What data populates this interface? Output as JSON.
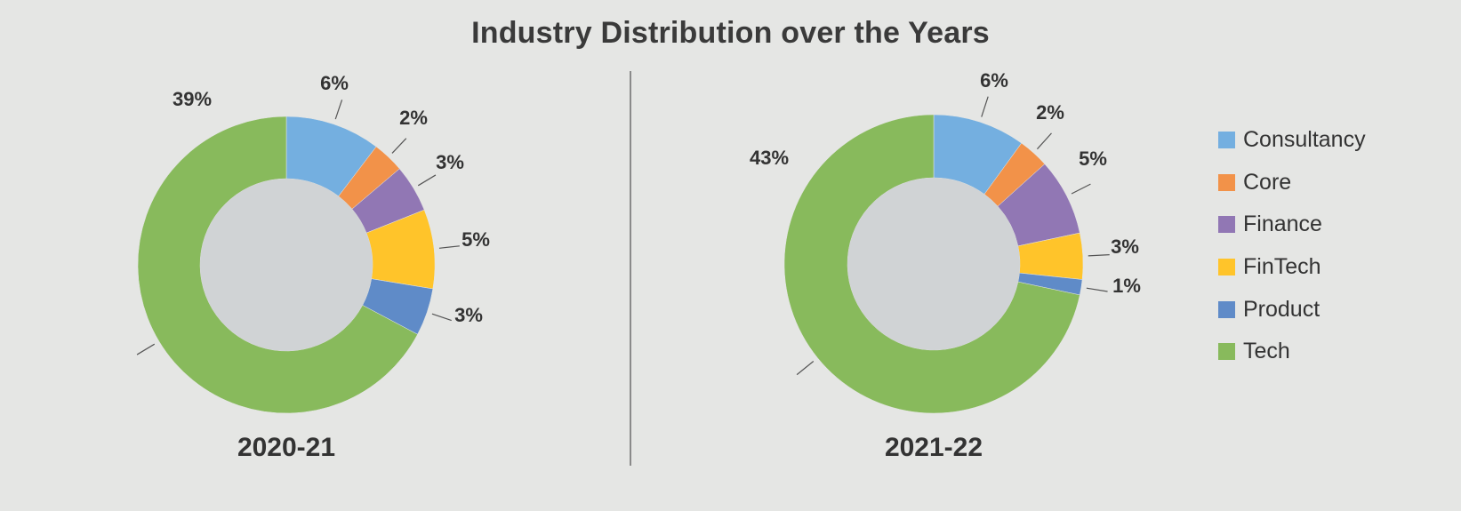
{
  "title": "Industry Distribution over the Years",
  "legend": [
    {
      "label": "Consultancy",
      "color": "#74afe0"
    },
    {
      "label": "Core",
      "color": "#f29249"
    },
    {
      "label": "Finance",
      "color": "#9177b4"
    },
    {
      "label": "FinTech",
      "color": "#ffc42a"
    },
    {
      "label": "Product",
      "color": "#5f8bc8"
    },
    {
      "label": "Tech",
      "color": "#88ba5c"
    }
  ],
  "chart_data": [
    {
      "type": "pie",
      "title": "2020-21",
      "categories": [
        "Consultancy",
        "Core",
        "Finance",
        "FinTech",
        "Product",
        "Tech"
      ],
      "values": [
        6,
        2,
        3,
        5,
        3,
        39
      ],
      "labels": [
        "6%",
        "2%",
        "3%",
        "5%",
        "3%",
        "39%"
      ],
      "colors": [
        "#74afe0",
        "#f29249",
        "#9177b4",
        "#ffc42a",
        "#5f8bc8",
        "#88ba5c"
      ],
      "style": "donut"
    },
    {
      "type": "pie",
      "title": "2021-22",
      "categories": [
        "Consultancy",
        "Core",
        "Finance",
        "FinTech",
        "Product",
        "Tech"
      ],
      "values": [
        6,
        2,
        5,
        3,
        1,
        43
      ],
      "labels": [
        "6%",
        "2%",
        "5%",
        "3%",
        "1%",
        "43%"
      ],
      "colors": [
        "#74afe0",
        "#f29249",
        "#9177b4",
        "#ffc42a",
        "#5f8bc8",
        "#88ba5c"
      ],
      "style": "donut"
    }
  ]
}
